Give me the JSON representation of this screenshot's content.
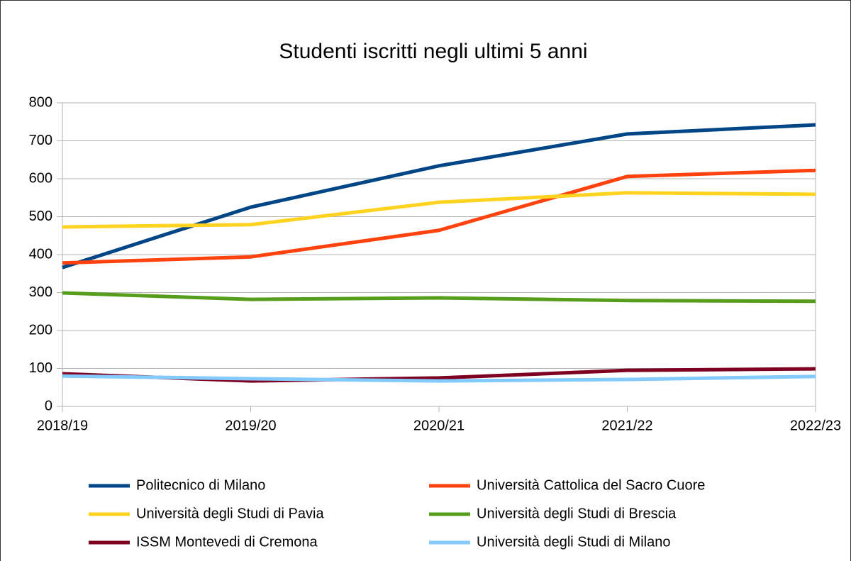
{
  "chart_data": {
    "type": "line",
    "title": "Studenti iscritti negli ultimi 5 anni",
    "categories": [
      "2018/19",
      "2019/20",
      "2020/21",
      "2021/22",
      "2022/23"
    ],
    "series": [
      {
        "name": "Politecnico di Milano",
        "color": "#004586",
        "values": [
          366,
          525,
          634,
          718,
          742
        ]
      },
      {
        "name": "Università Cattolica del Sacro Cuore",
        "color": "#ff420e",
        "values": [
          378,
          394,
          464,
          606,
          622
        ]
      },
      {
        "name": "Università degli Studi di Pavia",
        "color": "#ffd320",
        "values": [
          473,
          479,
          538,
          563,
          559
        ]
      },
      {
        "name": "Università degli Studi di Brescia",
        "color": "#579d1c",
        "values": [
          299,
          282,
          286,
          279,
          277
        ]
      },
      {
        "name": "ISSM Montevedi di Cremona",
        "color": "#7e0021",
        "values": [
          86,
          67,
          75,
          95,
          99
        ]
      },
      {
        "name": "Università degli Studi di Milano",
        "color": "#83caff",
        "values": [
          80,
          73,
          67,
          71,
          79
        ]
      }
    ],
    "ylim": [
      0,
      800
    ],
    "yticks": [
      0,
      100,
      200,
      300,
      400,
      500,
      600,
      700,
      800
    ],
    "grid": true,
    "legend": "bottom"
  }
}
